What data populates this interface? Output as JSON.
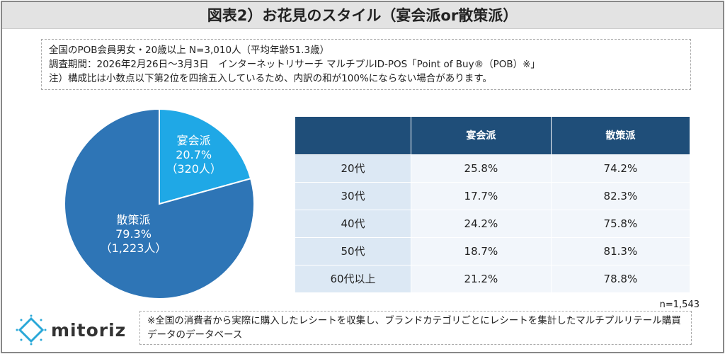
{
  "title": "図表2）お花見のスタイル（宴会派or散策派）",
  "notes": [
    "全国のPOB会員男女・20歳以上 N=3,010人（平均年齢51.3歳）",
    "調査期間：2026年2月26日～3月3日　インターネットリサーチ マルチプルID-POS「Point of Buy®（POB）※」",
    "注）構成比は小数点以下第2位を四捨五入しているため、内訳の和が100%にならない場合があります。"
  ],
  "chart_data": [
    {
      "type": "pie",
      "slices": [
        {
          "label": "宴会派",
          "percent": "20.7%",
          "count": "（320人）",
          "value": 20.7,
          "color": "#1fa8e6"
        },
        {
          "label": "散策派",
          "percent": "79.3%",
          "count": "（1,223人）",
          "value": 79.3,
          "color": "#2e75b6"
        }
      ]
    },
    {
      "type": "table",
      "columns": [
        "",
        "宴会派",
        "散策派"
      ],
      "rows": [
        [
          "20代",
          "25.8%",
          "74.2%"
        ],
        [
          "30代",
          "17.7%",
          "82.3%"
        ],
        [
          "40代",
          "24.2%",
          "75.8%"
        ],
        [
          "50代",
          "18.7%",
          "81.3%"
        ],
        [
          "60代以上",
          "21.2%",
          "78.8%"
        ]
      ]
    }
  ],
  "n_label": "n=1,543",
  "logo": "mitoriz",
  "footnote": "※全国の消費者から実際に購入したレシートを収集し、ブランドカテゴリごとにレシートを集計したマルチプルリテール購買データのデータベース"
}
